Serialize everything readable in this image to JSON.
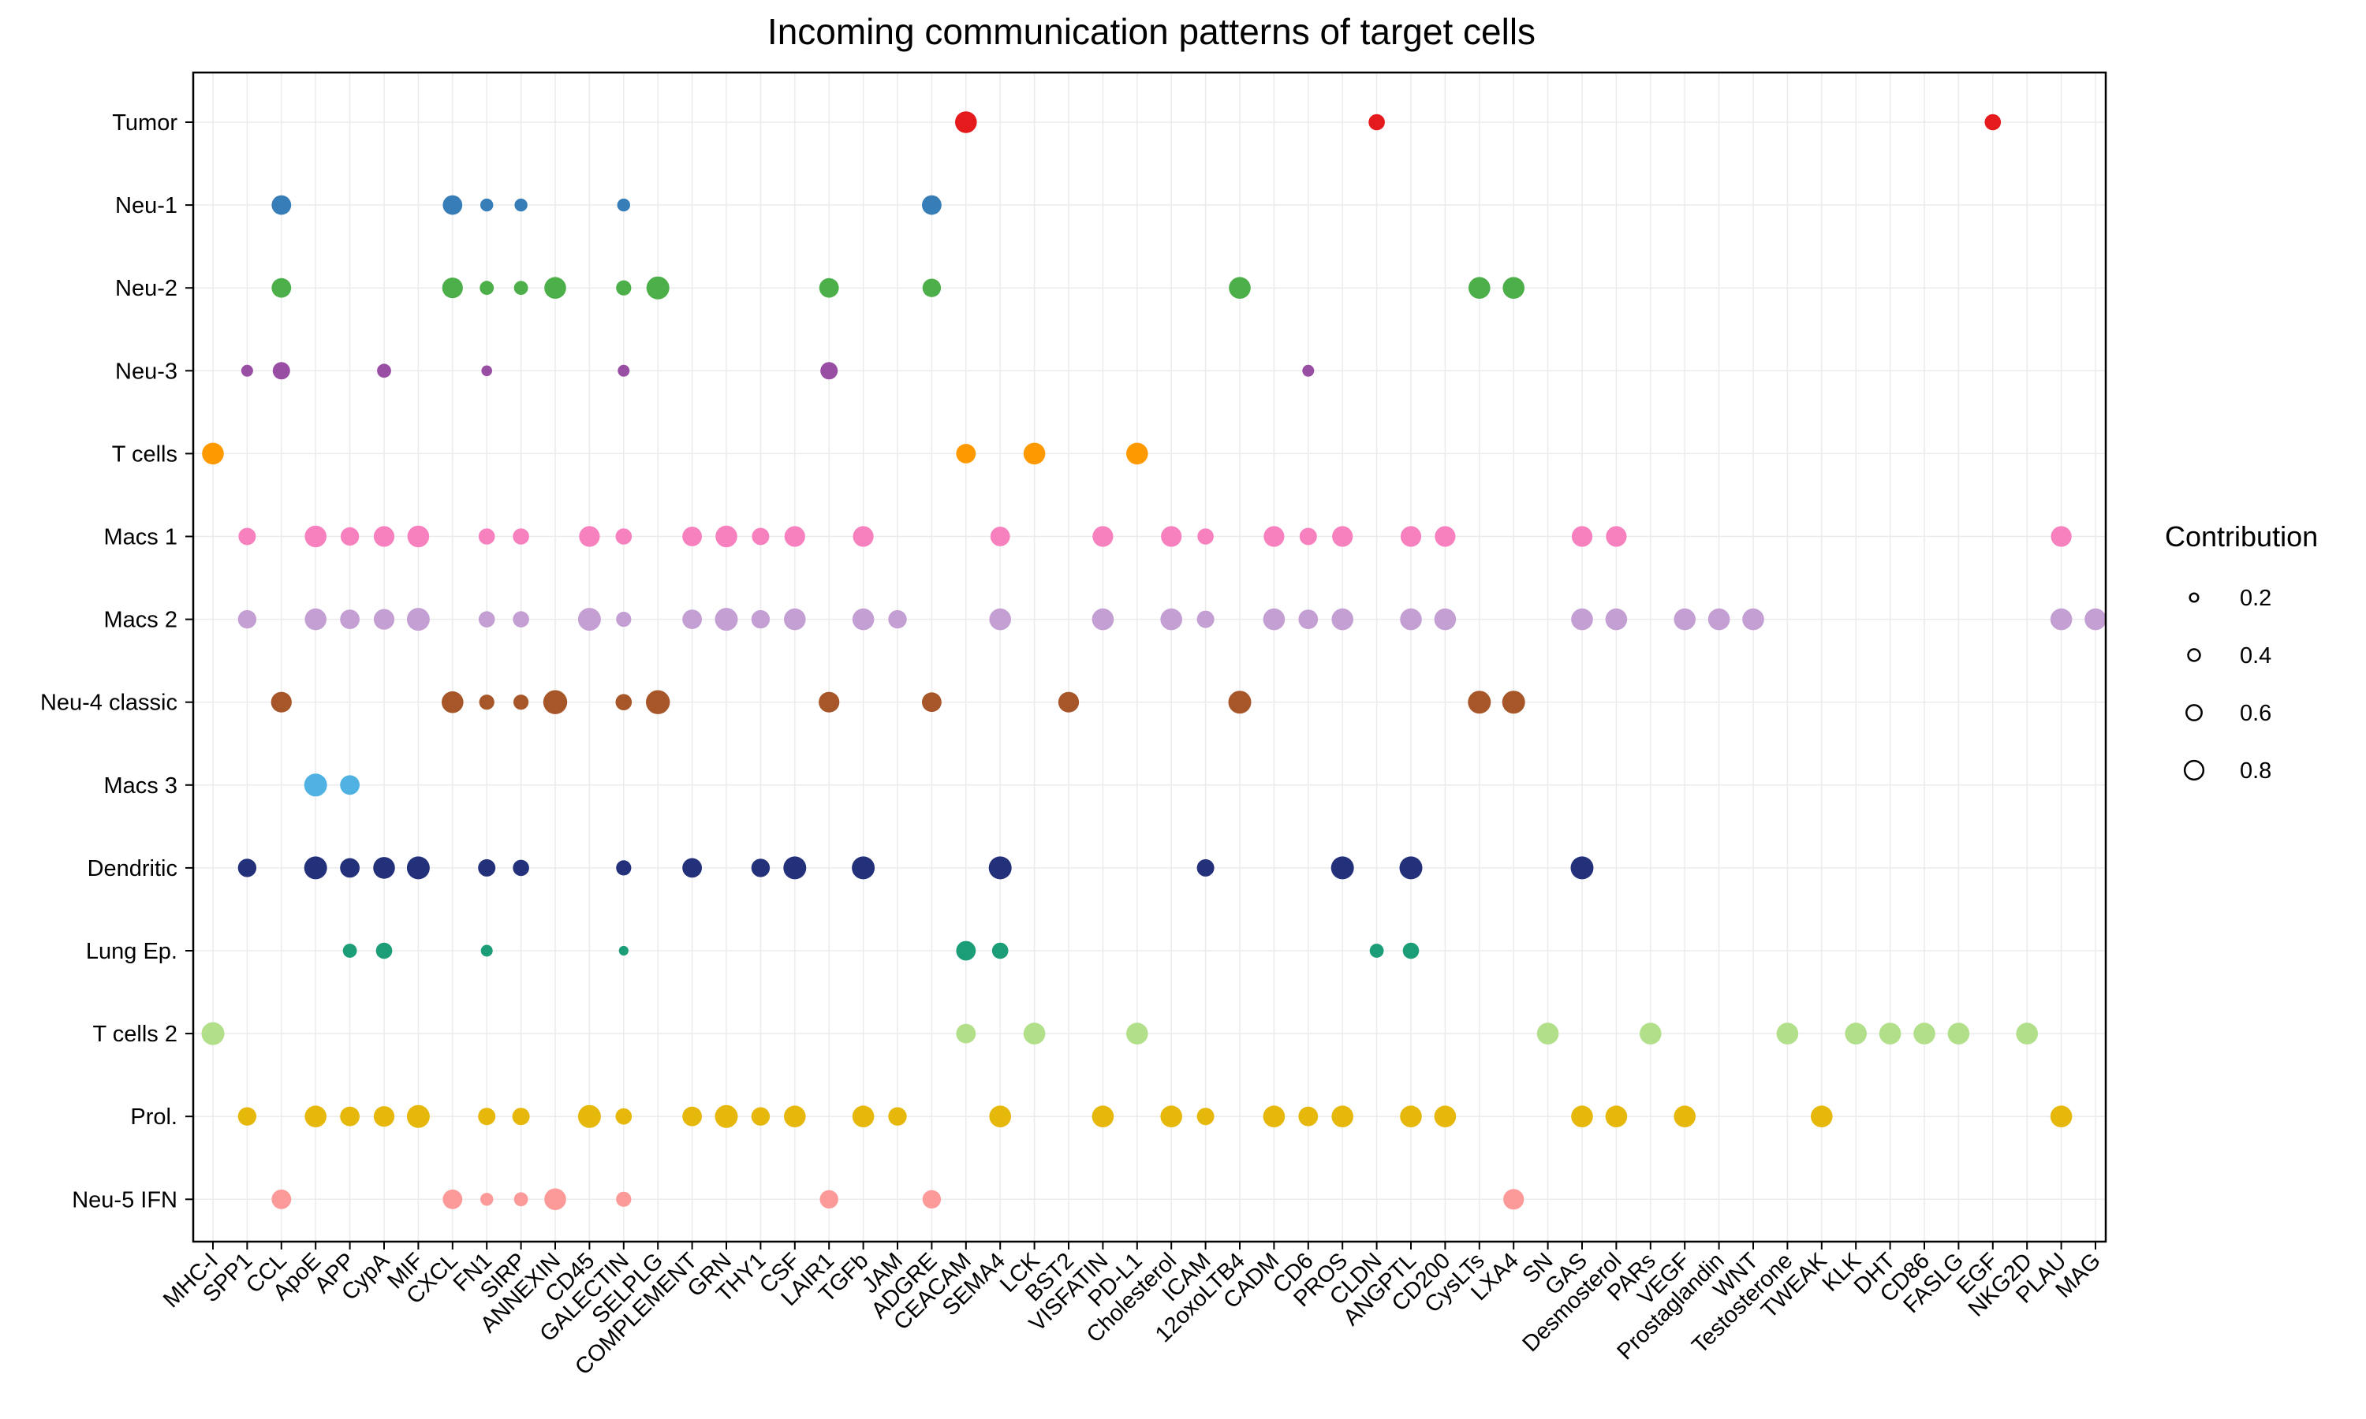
{
  "chart_data": {
    "type": "scatter",
    "title": "Incoming communication patterns of target cells",
    "xlabel": "",
    "ylabel": "",
    "pathways": [
      "MHC-I",
      "SPP1",
      "CCL",
      "ApoE",
      "APP",
      "CypA",
      "MIF",
      "CXCL",
      "FN1",
      "SIRP",
      "ANNEXIN",
      "CD45",
      "GALECTIN",
      "SELPLG",
      "COMPLEMENT",
      "GRN",
      "THY1",
      "CSF",
      "LAIR1",
      "TGFb",
      "JAM",
      "ADGRE",
      "CEACAM",
      "SEMA4",
      "LCK",
      "BST2",
      "VISFATIN",
      "PD-L1",
      "Cholesterol",
      "ICAM",
      "12oxoLTB4",
      "CADM",
      "CD6",
      "PROS",
      "CLDN",
      "ANGPTL",
      "CD200",
      "CysLTs",
      "LXA4",
      "SN",
      "GAS",
      "Desmosterol",
      "PARs",
      "VEGF",
      "Prostaglandin",
      "WNT",
      "Testosterone",
      "TWEAK",
      "KLK",
      "DHT",
      "CD86",
      "FASLG",
      "EGF",
      "NKG2D",
      "PLAU",
      "MAG"
    ],
    "cell_types": [
      "Tumor",
      "Neu-1",
      "Neu-2",
      "Neu-3",
      "T cells",
      "Macs 1",
      "Macs 2",
      "Neu-4 classic",
      "Macs 3",
      "Dendritic",
      "Lung Ep.",
      "T cells 2",
      "Prol.",
      "Neu-5 IFN"
    ],
    "colors": {
      "Tumor": "#e41a1c",
      "Neu-1": "#377eb8",
      "Neu-2": "#4daf4a",
      "Neu-3": "#984ea3",
      "T cells": "#ff9900",
      "Macs 1": "#f781bf",
      "Macs 2": "#c49fd3",
      "Neu-4 classic": "#a65628",
      "Macs 3": "#4fb2e3",
      "Dendritic": "#23307a",
      "Lung Ep.": "#1b9e77",
      "T cells 2": "#b2df8a",
      "Prol.": "#e6b80c",
      "Neu-5 IFN": "#fb9a99"
    },
    "series": [
      {
        "cell": "Tumor",
        "points": [
          [
            "CEACAM",
            0.7
          ],
          [
            "CLDN",
            0.45
          ],
          [
            "EGF",
            0.45
          ]
        ]
      },
      {
        "cell": "Neu-1",
        "points": [
          [
            "CCL",
            0.6
          ],
          [
            "CXCL",
            0.6
          ],
          [
            "FN1",
            0.3
          ],
          [
            "SIRP",
            0.3
          ],
          [
            "GALECTIN",
            0.3
          ],
          [
            "ADGRE",
            0.6
          ]
        ]
      },
      {
        "cell": "Neu-2",
        "points": [
          [
            "CCL",
            0.6
          ],
          [
            "CXCL",
            0.65
          ],
          [
            "FN1",
            0.35
          ],
          [
            "SIRP",
            0.35
          ],
          [
            "ANNEXIN",
            0.7
          ],
          [
            "GALECTIN",
            0.4
          ],
          [
            "SELPLG",
            0.75
          ],
          [
            "LAIR1",
            0.6
          ],
          [
            "ADGRE",
            0.55
          ],
          [
            "12oxoLTB4",
            0.7
          ],
          [
            "CysLTs",
            0.7
          ],
          [
            "LXA4",
            0.7
          ]
        ]
      },
      {
        "cell": "Neu-3",
        "points": [
          [
            "SPP1",
            0.25
          ],
          [
            "CCL",
            0.5
          ],
          [
            "CypA",
            0.35
          ],
          [
            "FN1",
            0.2
          ],
          [
            "GALECTIN",
            0.25
          ],
          [
            "LAIR1",
            0.5
          ],
          [
            "CD6",
            0.25
          ]
        ]
      },
      {
        "cell": "T cells",
        "points": [
          [
            "MHC-I",
            0.7
          ],
          [
            "CEACAM",
            0.6
          ],
          [
            "LCK",
            0.7
          ],
          [
            "PD-L1",
            0.7
          ]
        ]
      },
      {
        "cell": "Macs 1",
        "points": [
          [
            "SPP1",
            0.5
          ],
          [
            "ApoE",
            0.7
          ],
          [
            "APP",
            0.55
          ],
          [
            "CypA",
            0.65
          ],
          [
            "MIF",
            0.7
          ],
          [
            "FN1",
            0.45
          ],
          [
            "SIRP",
            0.45
          ],
          [
            "CD45",
            0.65
          ],
          [
            "GALECTIN",
            0.45
          ],
          [
            "COMPLEMENT",
            0.6
          ],
          [
            "GRN",
            0.7
          ],
          [
            "THY1",
            0.5
          ],
          [
            "CSF",
            0.65
          ],
          [
            "TGFb",
            0.65
          ],
          [
            "SEMA4",
            0.6
          ],
          [
            "VISFATIN",
            0.65
          ],
          [
            "Cholesterol",
            0.65
          ],
          [
            "ICAM",
            0.45
          ],
          [
            "CADM",
            0.65
          ],
          [
            "CD6",
            0.5
          ],
          [
            "PROS",
            0.65
          ],
          [
            "ANGPTL",
            0.65
          ],
          [
            "CD200",
            0.65
          ],
          [
            "GAS",
            0.65
          ],
          [
            "Desmosterol",
            0.65
          ],
          [
            "PLAU",
            0.65
          ]
        ]
      },
      {
        "cell": "Macs 2",
        "points": [
          [
            "SPP1",
            0.55
          ],
          [
            "ApoE",
            0.7
          ],
          [
            "APP",
            0.6
          ],
          [
            "CypA",
            0.65
          ],
          [
            "MIF",
            0.75
          ],
          [
            "FN1",
            0.45
          ],
          [
            "SIRP",
            0.45
          ],
          [
            "CD45",
            0.75
          ],
          [
            "GALECTIN",
            0.4
          ],
          [
            "COMPLEMENT",
            0.6
          ],
          [
            "GRN",
            0.75
          ],
          [
            "THY1",
            0.55
          ],
          [
            "CSF",
            0.7
          ],
          [
            "TGFb",
            0.7
          ],
          [
            "JAM",
            0.55
          ],
          [
            "SEMA4",
            0.7
          ],
          [
            "VISFATIN",
            0.7
          ],
          [
            "Cholesterol",
            0.7
          ],
          [
            "ICAM",
            0.5
          ],
          [
            "CADM",
            0.7
          ],
          [
            "CD6",
            0.6
          ],
          [
            "PROS",
            0.7
          ],
          [
            "ANGPTL",
            0.7
          ],
          [
            "CD200",
            0.7
          ],
          [
            "GAS",
            0.7
          ],
          [
            "Desmosterol",
            0.7
          ],
          [
            "VEGF",
            0.7
          ],
          [
            "Prostaglandin",
            0.7
          ],
          [
            "WNT",
            0.7
          ],
          [
            "PLAU",
            0.7
          ],
          [
            "MAG",
            0.7
          ]
        ]
      },
      {
        "cell": "Neu-4 classic",
        "points": [
          [
            "CCL",
            0.65
          ],
          [
            "CXCL",
            0.7
          ],
          [
            "FN1",
            0.4
          ],
          [
            "SIRP",
            0.4
          ],
          [
            "ANNEXIN",
            0.8
          ],
          [
            "GALECTIN",
            0.45
          ],
          [
            "SELPLG",
            0.8
          ],
          [
            "LAIR1",
            0.65
          ],
          [
            "ADGRE",
            0.6
          ],
          [
            "BST2",
            0.65
          ],
          [
            "12oxoLTB4",
            0.75
          ],
          [
            "CysLTs",
            0.75
          ],
          [
            "LXA4",
            0.75
          ]
        ]
      },
      {
        "cell": "Macs 3",
        "points": [
          [
            "ApoE",
            0.75
          ],
          [
            "APP",
            0.6
          ]
        ]
      },
      {
        "cell": "Dendritic",
        "points": [
          [
            "SPP1",
            0.55
          ],
          [
            "ApoE",
            0.75
          ],
          [
            "APP",
            0.6
          ],
          [
            "CypA",
            0.7
          ],
          [
            "MIF",
            0.75
          ],
          [
            "FN1",
            0.5
          ],
          [
            "SIRP",
            0.45
          ],
          [
            "GALECTIN",
            0.4
          ],
          [
            "COMPLEMENT",
            0.6
          ],
          [
            "THY1",
            0.55
          ],
          [
            "CSF",
            0.75
          ],
          [
            "TGFb",
            0.75
          ],
          [
            "SEMA4",
            0.75
          ],
          [
            "ICAM",
            0.5
          ],
          [
            "PROS",
            0.75
          ],
          [
            "ANGPTL",
            0.75
          ],
          [
            "GAS",
            0.75
          ]
        ]
      },
      {
        "cell": "Lung Ep.",
        "points": [
          [
            "APP",
            0.35
          ],
          [
            "CypA",
            0.45
          ],
          [
            "FN1",
            0.25
          ],
          [
            "GALECTIN",
            0.15
          ],
          [
            "CEACAM",
            0.6
          ],
          [
            "SEMA4",
            0.45
          ],
          [
            "CLDN",
            0.35
          ],
          [
            "ANGPTL",
            0.45
          ]
        ]
      },
      {
        "cell": "T cells 2",
        "points": [
          [
            "MHC-I",
            0.75
          ],
          [
            "CEACAM",
            0.6
          ],
          [
            "LCK",
            0.7
          ],
          [
            "PD-L1",
            0.7
          ],
          [
            "SN",
            0.7
          ],
          [
            "PARs",
            0.7
          ],
          [
            "Testosterone",
            0.7
          ],
          [
            "KLK",
            0.7
          ],
          [
            "DHT",
            0.7
          ],
          [
            "CD86",
            0.7
          ],
          [
            "FASLG",
            0.7
          ],
          [
            "NKG2D",
            0.7
          ]
        ]
      },
      {
        "cell": "Prol.",
        "points": [
          [
            "SPP1",
            0.55
          ],
          [
            "ApoE",
            0.7
          ],
          [
            "APP",
            0.6
          ],
          [
            "CypA",
            0.65
          ],
          [
            "MIF",
            0.75
          ],
          [
            "FN1",
            0.5
          ],
          [
            "SIRP",
            0.5
          ],
          [
            "CD45",
            0.75
          ],
          [
            "GALECTIN",
            0.45
          ],
          [
            "COMPLEMENT",
            0.6
          ],
          [
            "GRN",
            0.75
          ],
          [
            "THY1",
            0.55
          ],
          [
            "CSF",
            0.7
          ],
          [
            "TGFb",
            0.7
          ],
          [
            "JAM",
            0.55
          ],
          [
            "SEMA4",
            0.7
          ],
          [
            "VISFATIN",
            0.7
          ],
          [
            "Cholesterol",
            0.7
          ],
          [
            "ICAM",
            0.5
          ],
          [
            "CADM",
            0.7
          ],
          [
            "CD6",
            0.6
          ],
          [
            "PROS",
            0.7
          ],
          [
            "ANGPTL",
            0.7
          ],
          [
            "CD200",
            0.7
          ],
          [
            "GAS",
            0.7
          ],
          [
            "Desmosterol",
            0.7
          ],
          [
            "VEGF",
            0.7
          ],
          [
            "TWEAK",
            0.7
          ],
          [
            "PLAU",
            0.7
          ]
        ]
      },
      {
        "cell": "Neu-5 IFN",
        "points": [
          [
            "CCL",
            0.6
          ],
          [
            "CXCL",
            0.6
          ],
          [
            "FN1",
            0.3
          ],
          [
            "SIRP",
            0.35
          ],
          [
            "ANNEXIN",
            0.7
          ],
          [
            "GALECTIN",
            0.4
          ],
          [
            "LAIR1",
            0.55
          ],
          [
            "ADGRE",
            0.55
          ],
          [
            "LXA4",
            0.65
          ]
        ]
      }
    ],
    "legend": {
      "title": "Contribution",
      "values": [
        0.2,
        0.4,
        0.6,
        0.8
      ],
      "labels": [
        "0.2",
        "0.4",
        "0.6",
        "0.8"
      ],
      "position": "right"
    },
    "grid": true
  }
}
